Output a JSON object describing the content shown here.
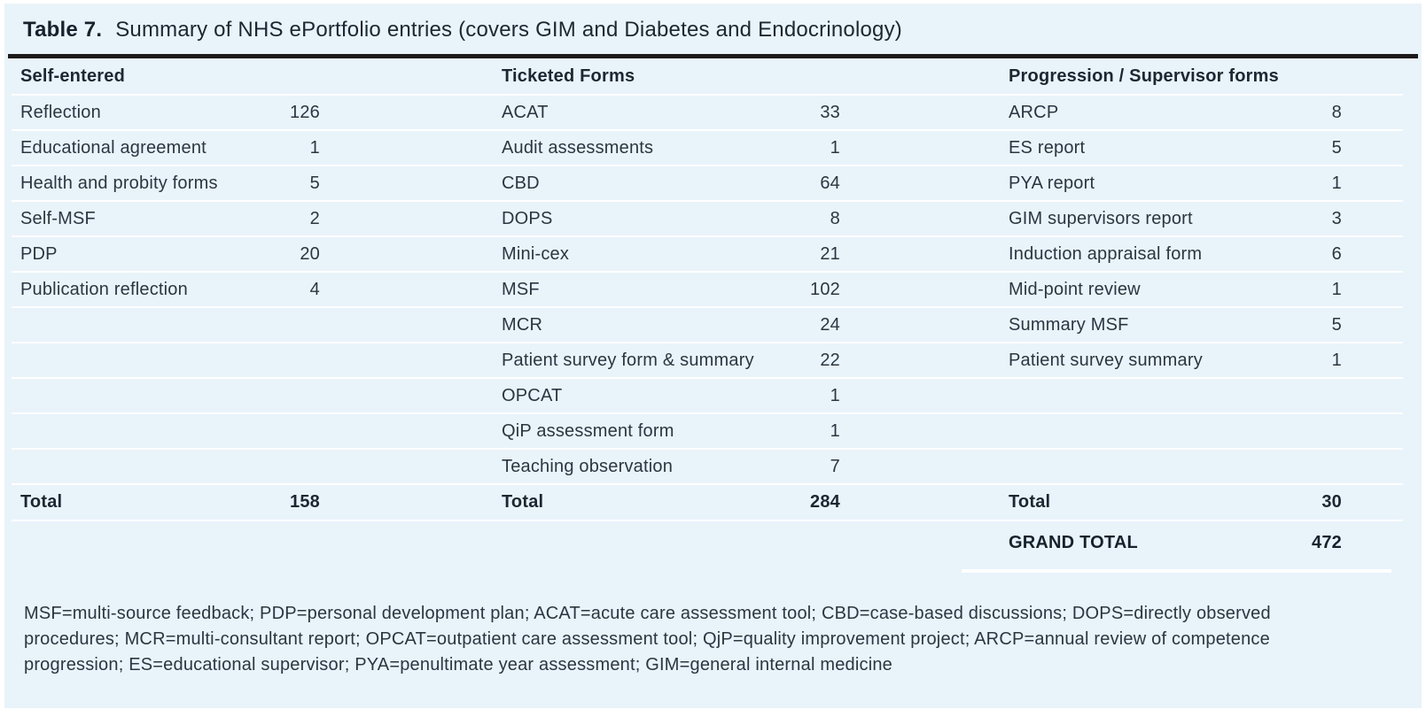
{
  "caption": {
    "number": "Table 7.",
    "text": "Summary of NHS ePortfolio entries (covers GIM and Diabetes and Endocrinology)"
  },
  "groups": [
    {
      "header": "Self-entered",
      "items": [
        {
          "label": "Reflection",
          "value": "126"
        },
        {
          "label": "Educational agreement",
          "value": "1"
        },
        {
          "label": "Health and probity forms",
          "value": "5"
        },
        {
          "label": "Self-MSF",
          "value": "2"
        },
        {
          "label": "PDP",
          "value": "20"
        },
        {
          "label": "Publication reflection",
          "value": "4"
        }
      ],
      "total": {
        "label": "Total",
        "value": "158"
      }
    },
    {
      "header": "Ticketed Forms",
      "items": [
        {
          "label": "ACAT",
          "value": "33"
        },
        {
          "label": "Audit assessments",
          "value": "1"
        },
        {
          "label": "CBD",
          "value": "64"
        },
        {
          "label": "DOPS",
          "value": "8"
        },
        {
          "label": "Mini-cex",
          "value": "21"
        },
        {
          "label": "MSF",
          "value": "102"
        },
        {
          "label": "MCR",
          "value": "24"
        },
        {
          "label": "Patient survey form & summary",
          "value": "22"
        },
        {
          "label": "OPCAT",
          "value": "1"
        },
        {
          "label": "QiP assessment form",
          "value": "1"
        },
        {
          "label": "Teaching observation",
          "value": "7"
        }
      ],
      "total": {
        "label": "Total",
        "value": "284"
      }
    },
    {
      "header": "Progression / Supervisor forms",
      "items": [
        {
          "label": "ARCP",
          "value": "8"
        },
        {
          "label": "ES report",
          "value": "5"
        },
        {
          "label": "PYA report",
          "value": "1"
        },
        {
          "label": "GIM supervisors report",
          "value": "3"
        },
        {
          "label": "Induction appraisal form",
          "value": "6"
        },
        {
          "label": "Mid-point review",
          "value": "1"
        },
        {
          "label": "Summary MSF",
          "value": "5"
        },
        {
          "label": "Patient survey summary",
          "value": "1"
        }
      ],
      "total": {
        "label": "Total",
        "value": "30"
      },
      "grand_total": {
        "label": "GRAND TOTAL",
        "value": "472"
      }
    }
  ],
  "footnote": "MSF=multi-source feedback; PDP=personal development plan; ACAT=acute care assessment tool; CBD=case-based discussions; DOPS=directly observed procedures; MCR=multi-consultant report; OPCAT=outpatient care assessment tool; QjP=quality improvement project; ARCP=annual review of competence progression; ES=educational supervisor; PYA=penultimate year assessment; GIM=general internal medicine",
  "colors": {
    "panel_background": "#e9f3fa",
    "separator_line": "#ffffff",
    "title_rule": "#1b1b1b",
    "text": "#2b3640"
  }
}
